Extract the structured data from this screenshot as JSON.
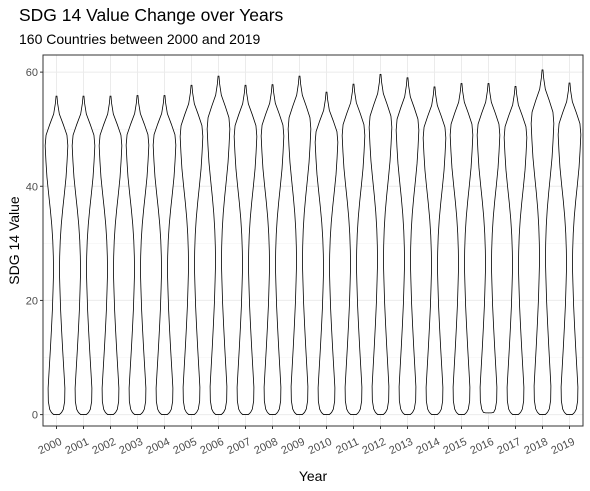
{
  "chart_data": {
    "type": "violin",
    "title": "SDG 14 Value Change over Years",
    "subtitle": "160 Countries between 2000 and 2019",
    "xlabel": "Year",
    "ylabel": "SDG 14 Value",
    "categories": [
      "2000",
      "2001",
      "2002",
      "2003",
      "2004",
      "2005",
      "2006",
      "2007",
      "2008",
      "2009",
      "2010",
      "2011",
      "2012",
      "2013",
      "2014",
      "2015",
      "2016",
      "2017",
      "2018",
      "2019"
    ],
    "ylim": [
      -2,
      63
    ],
    "yticks": [
      0,
      20,
      40,
      60
    ],
    "grid": true,
    "theme": "bw",
    "min_values": [
      0,
      0,
      0,
      0,
      0,
      0,
      0,
      0,
      0,
      0,
      0,
      0,
      0,
      0,
      0,
      0,
      0.3,
      0,
      0,
      0
    ],
    "max_values": [
      55.8,
      55.8,
      55.8,
      55.9,
      55.9,
      57.7,
      59.3,
      57.7,
      57.8,
      59.3,
      56.5,
      57.9,
      59.6,
      59,
      57.4,
      58,
      58,
      57.5,
      60.4,
      58.1
    ],
    "density_profile": [
      [
        0.0,
        0.25
      ],
      [
        0.4,
        0.45
      ],
      [
        1.0,
        0.6
      ],
      [
        2.5,
        0.72
      ],
      [
        5,
        0.74
      ],
      [
        8,
        0.66
      ],
      [
        12,
        0.55
      ],
      [
        16,
        0.45
      ],
      [
        20,
        0.36
      ],
      [
        24,
        0.3
      ],
      [
        27,
        0.26
      ],
      [
        30,
        0.28
      ],
      [
        33,
        0.33
      ],
      [
        36,
        0.42
      ],
      [
        39,
        0.55
      ],
      [
        42,
        0.7
      ],
      [
        45,
        0.84
      ],
      [
        48,
        0.93
      ],
      [
        51,
        1.0
      ],
      [
        53,
        0.92
      ],
      [
        55,
        0.6
      ],
      [
        57,
        0.25
      ],
      [
        59,
        0.1
      ],
      [
        60.4,
        0.04
      ]
    ],
    "violin_halfwidth_scale": 0.42
  }
}
